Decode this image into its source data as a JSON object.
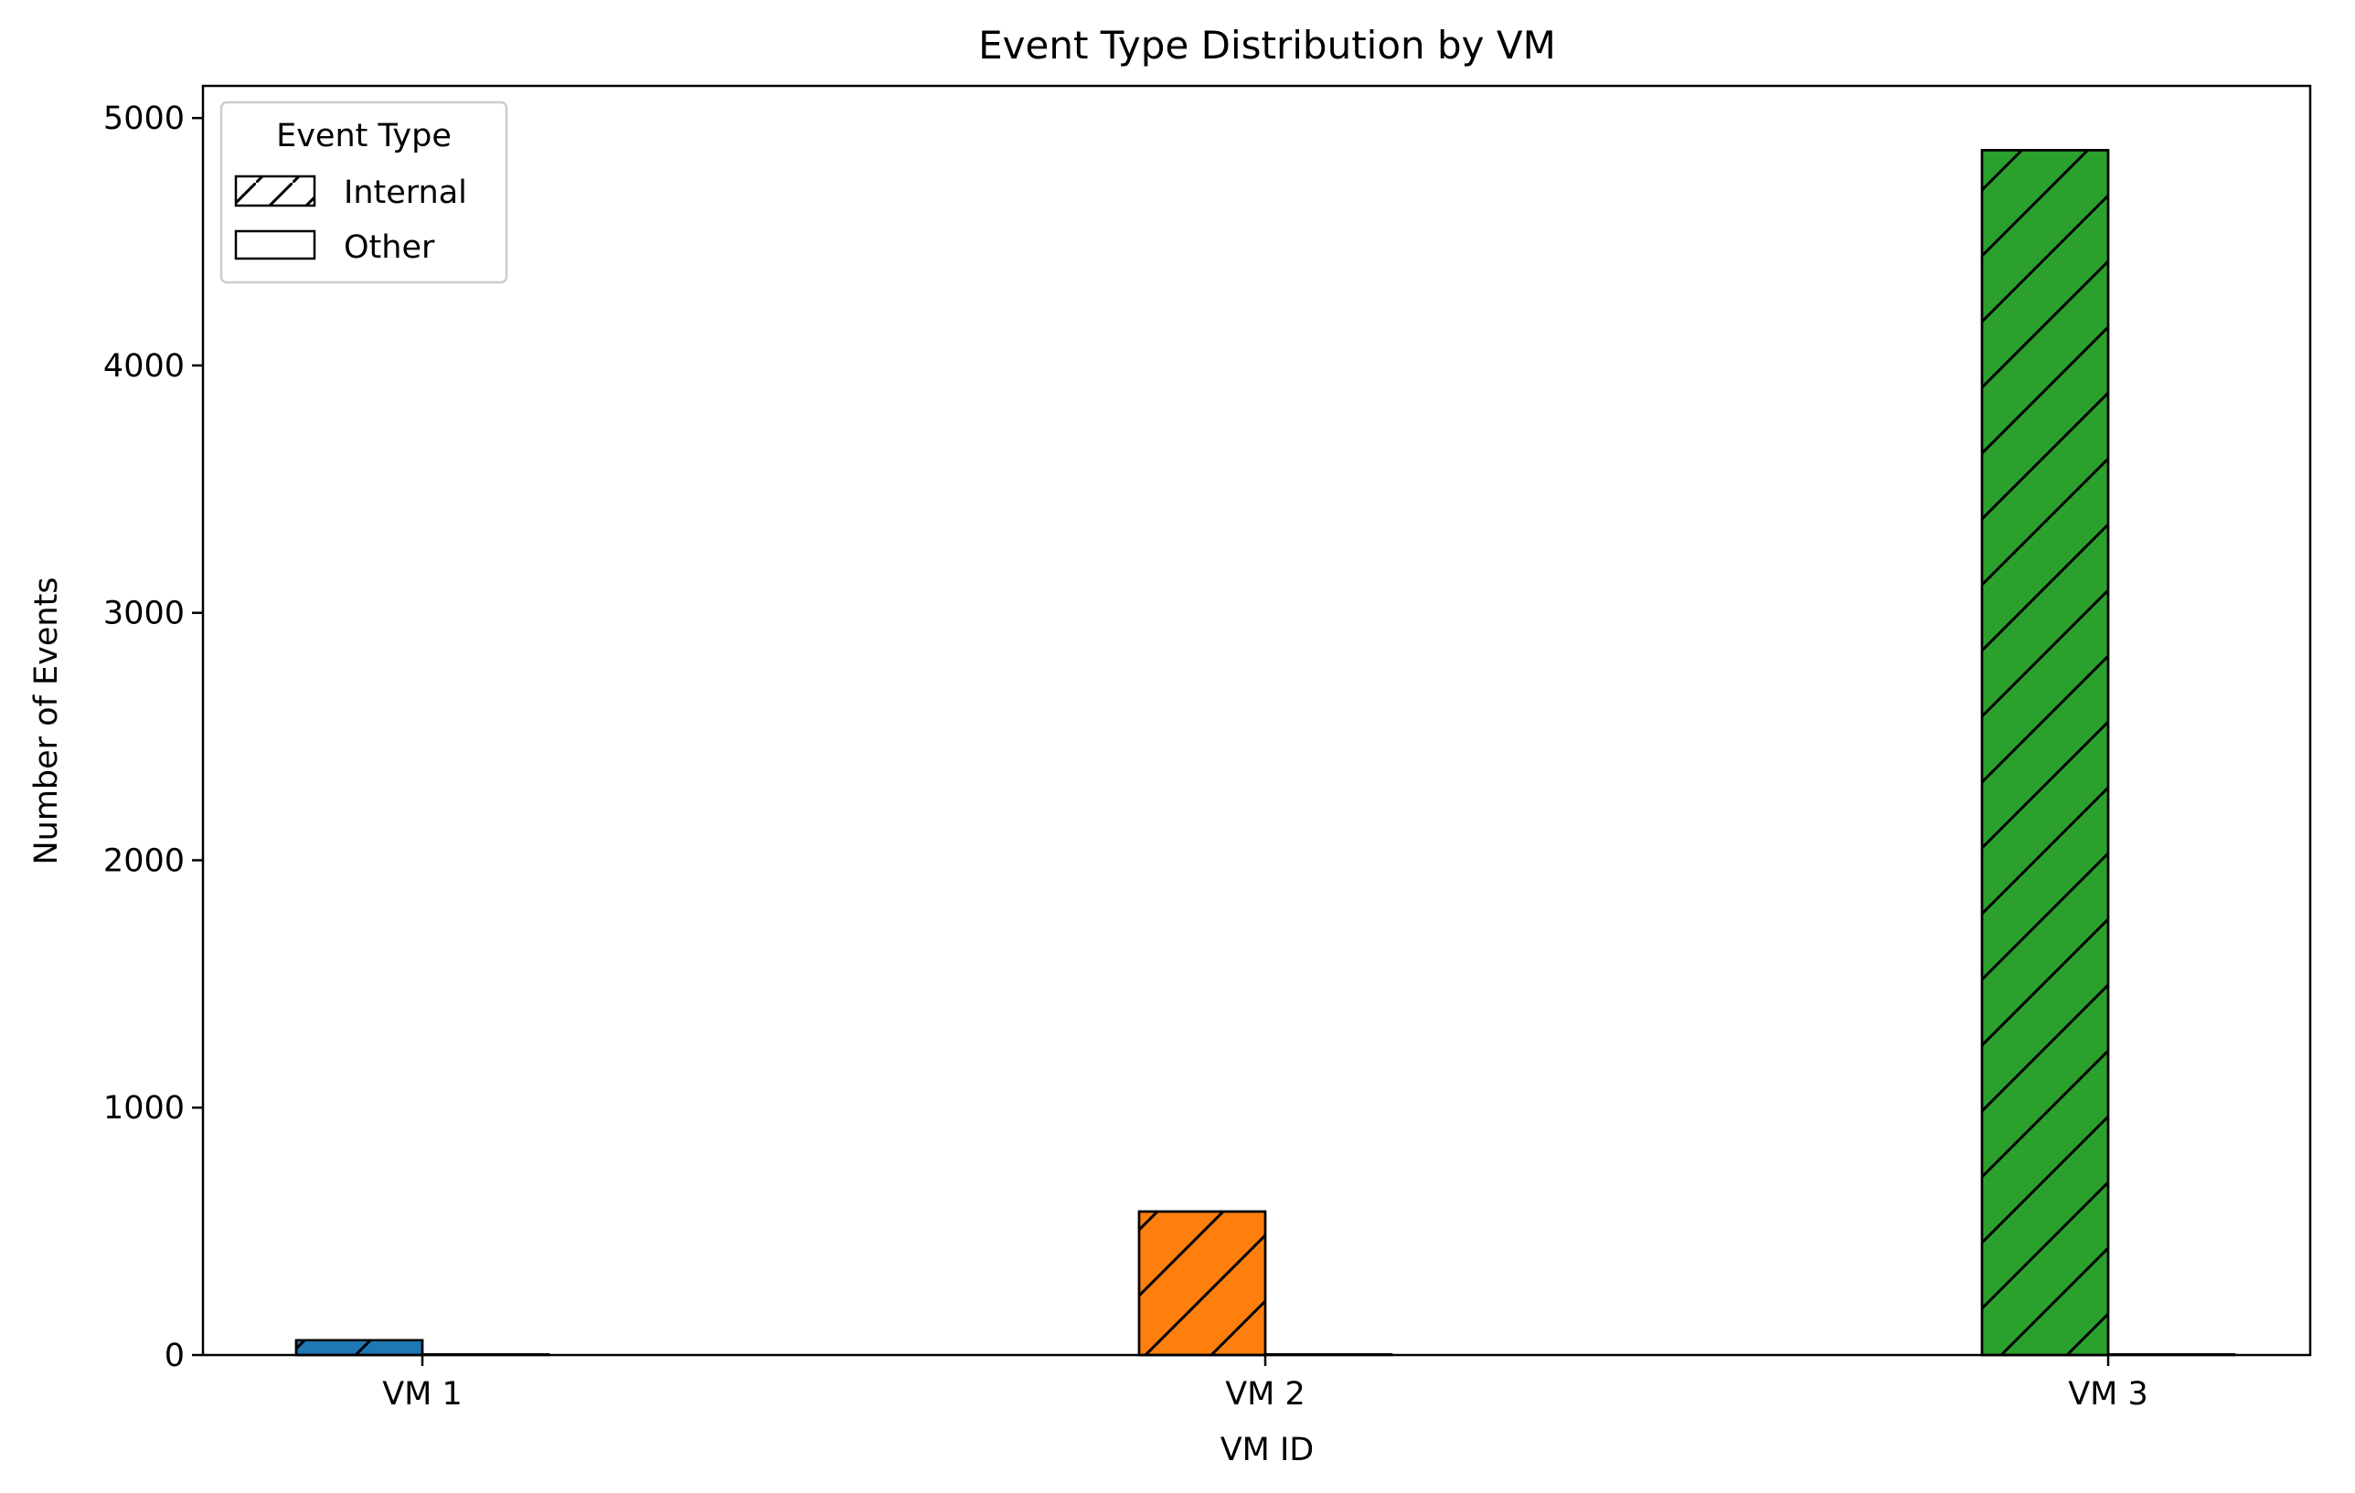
{
  "chart_data": {
    "type": "bar",
    "title": "Event Type Distribution by VM",
    "xlabel": "VM ID",
    "ylabel": "Number of Events",
    "categories": [
      "VM 1",
      "VM 2",
      "VM 3"
    ],
    "bar_colors": [
      "#1f77b4",
      "#ff7f0e",
      "#2ca02c"
    ],
    "series": [
      {
        "name": "Internal",
        "hatch": "diagonal",
        "values": [
          60,
          580,
          4870
        ]
      },
      {
        "name": "Other",
        "hatch": "none",
        "values": [
          3,
          3,
          3
        ]
      }
    ],
    "ylim": [
      0,
      5130
    ],
    "yticks": [
      0,
      1000,
      2000,
      3000,
      4000,
      5000
    ],
    "grid": false,
    "legend": {
      "title": "Event Type",
      "placement": "top-left"
    }
  }
}
